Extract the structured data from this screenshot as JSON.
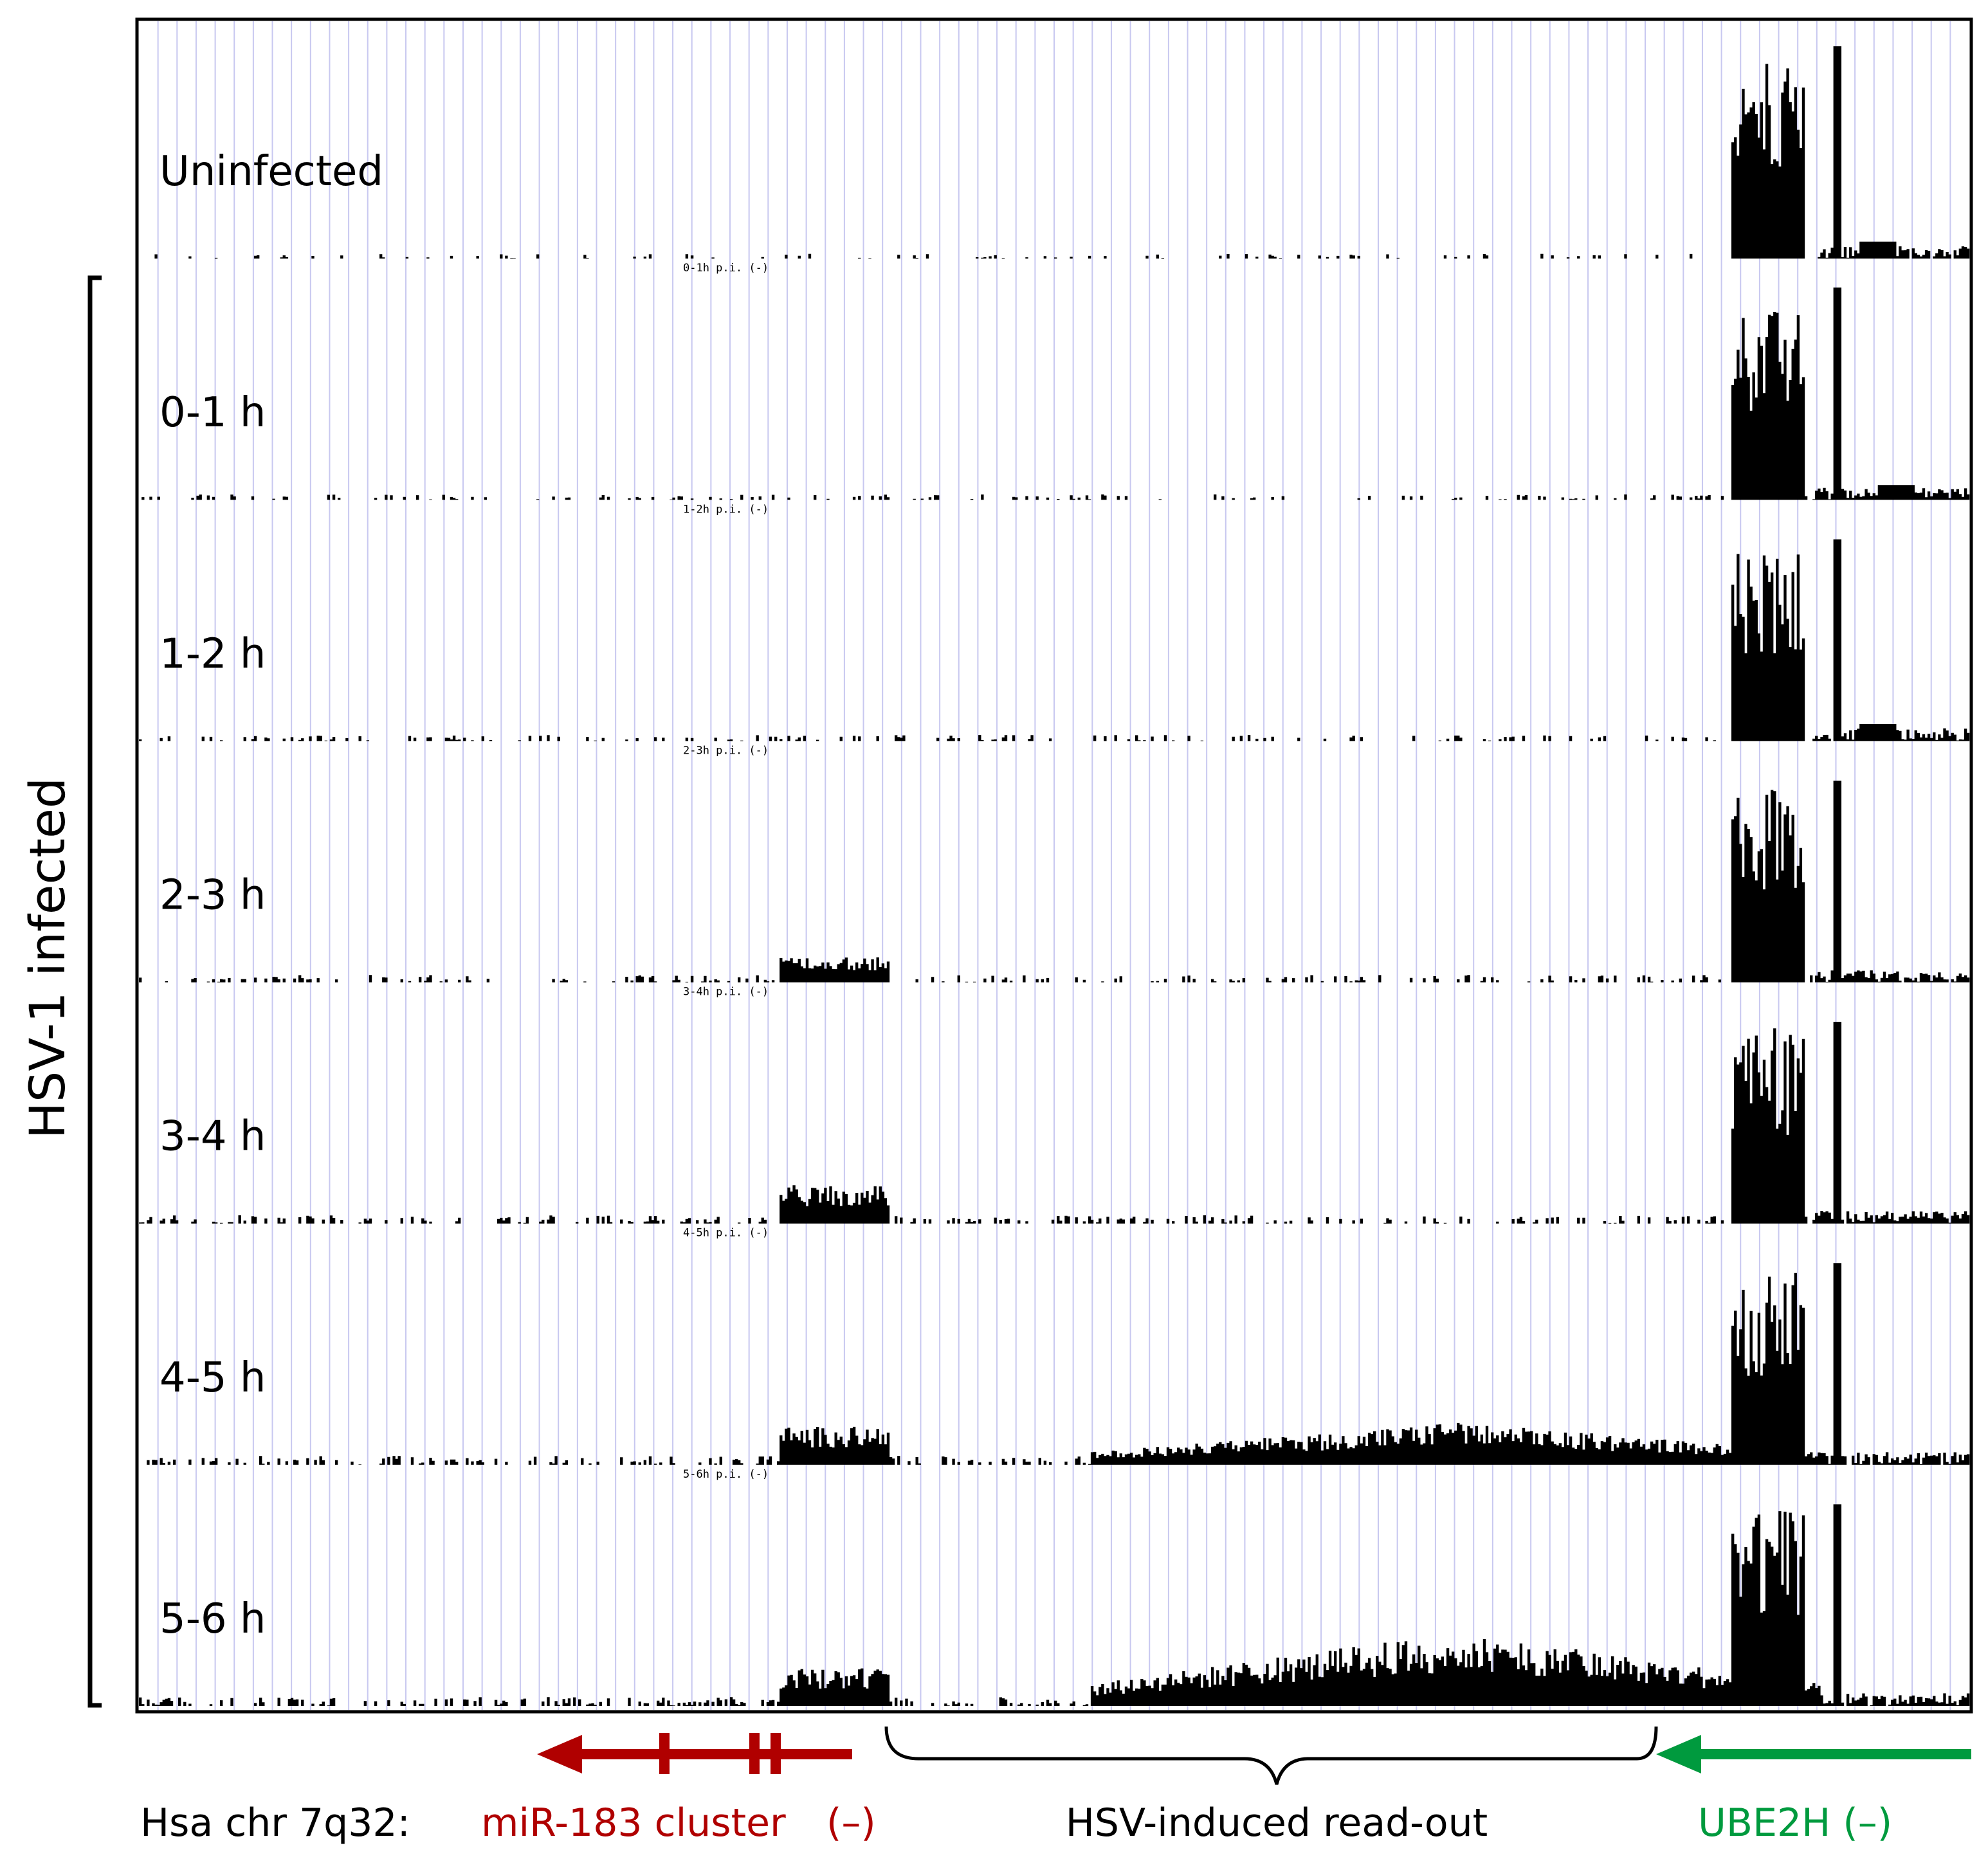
{
  "chart_data": {
    "type": "area",
    "description_hidden": "",
    "side_label": "HSV-1 infected",
    "grid": true,
    "grid_color": "#c8c8f0",
    "bar_color": "#000000",
    "tracks": [
      {
        "label": "Uninfected",
        "sublabel": "",
        "scale": 0.35,
        "ube_region": 1.0,
        "peaks": [
          {
            "center": 0.89,
            "width": 0.04,
            "height": 0.95
          },
          {
            "center": 0.928,
            "width": 0.004,
            "height": 1.0
          },
          {
            "center": 0.95,
            "width": 0.02,
            "height": 0.08
          }
        ]
      },
      {
        "label": "0-1 h",
        "sublabel": "0-1h p.i. (-)",
        "scale": 0.45,
        "ube_region": 1.0,
        "peaks": [
          {
            "center": 0.89,
            "width": 0.04,
            "height": 0.9
          },
          {
            "center": 0.928,
            "width": 0.004,
            "height": 1.0
          },
          {
            "center": 0.96,
            "width": 0.02,
            "height": 0.07
          }
        ]
      },
      {
        "label": "1-2 h",
        "sublabel": "1-2h p.i. (-)",
        "scale": 0.55,
        "ube_region": 1.0,
        "peaks": [
          {
            "center": 0.89,
            "width": 0.04,
            "height": 0.9
          },
          {
            "center": 0.928,
            "width": 0.004,
            "height": 0.95
          },
          {
            "center": 0.95,
            "width": 0.02,
            "height": 0.08
          }
        ]
      },
      {
        "label": "2-3 h",
        "sublabel": "2-3h p.i. (-)",
        "scale": 0.75,
        "ube_region": 1.0,
        "peaks": [
          {
            "center": 0.38,
            "width": 0.06,
            "height": 0.12
          },
          {
            "center": 0.89,
            "width": 0.04,
            "height": 0.92
          },
          {
            "center": 0.928,
            "width": 0.004,
            "height": 0.95
          }
        ]
      },
      {
        "label": "3-4 h",
        "sublabel": "3-4h p.i. (-)",
        "scale": 0.9,
        "ube_region": 1.0,
        "peaks": [
          {
            "center": 0.38,
            "width": 0.06,
            "height": 0.18
          },
          {
            "center": 0.89,
            "width": 0.04,
            "height": 0.92
          },
          {
            "center": 0.928,
            "width": 0.004,
            "height": 0.95
          }
        ]
      },
      {
        "label": "4-5 h",
        "sublabel": "4-5h p.i. (-)",
        "scale": 1.0,
        "ube_region": 1.0,
        "peaks": [
          {
            "center": 0.38,
            "width": 0.06,
            "height": 0.18
          },
          {
            "center": 0.72,
            "width": 0.4,
            "height": 0.2
          },
          {
            "center": 0.89,
            "width": 0.04,
            "height": 0.92
          },
          {
            "center": 0.928,
            "width": 0.004,
            "height": 0.95
          }
        ]
      },
      {
        "label": "5-6 h",
        "sublabel": "5-6h p.i. (-)",
        "scale": 1.0,
        "ube_region": 1.0,
        "peaks": [
          {
            "center": 0.38,
            "width": 0.06,
            "height": 0.18
          },
          {
            "center": 0.72,
            "width": 0.4,
            "height": 0.35
          },
          {
            "center": 0.89,
            "width": 0.04,
            "height": 0.92
          },
          {
            "center": 0.928,
            "width": 0.004,
            "height": 0.95
          }
        ]
      }
    ],
    "annotations": {
      "chr_label": "Hsa chr 7q32:",
      "mir_label": "miR-183 cluster",
      "mir_strand": "(–)",
      "mir_color": "#b00000",
      "readout_label": "HSV-induced read-out",
      "ube_label": "UBE2H (–)",
      "ube_color": "#009a3e"
    }
  }
}
